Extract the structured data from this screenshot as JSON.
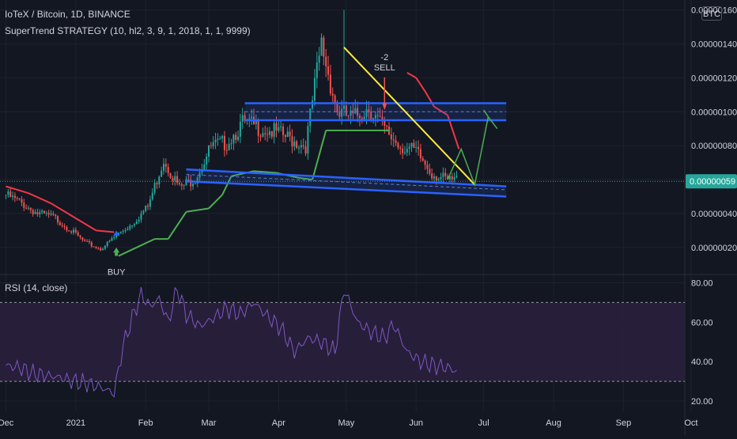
{
  "header": {
    "symbol_title": "IoTeX / Bitcoin, 1D, BINANCE",
    "strategy_title": "SuperTrend STRATEGY (10, hl2, 3, 9, 1, 2018, 1, 1, 9999)",
    "currency": "BTC"
  },
  "rsi_panel": {
    "title": "RSI (14, close)"
  },
  "colors": {
    "background": "#131722",
    "grid": "#1e222d",
    "candle_up": "#26a69a",
    "candle_down": "#ef5350",
    "supertrend_up": "#4caf50",
    "supertrend_down": "#f23645",
    "channel": "#2962ff",
    "trendline": "#ffeb3b",
    "projection": "#4caf50",
    "rsi_line": "#7e57c2",
    "rsi_band": "#2a1f3d",
    "price_badge": "#26a69a"
  },
  "chart_data": [
    {
      "type": "candlestick",
      "x_axis": {
        "tick_labels": [
          "Dec",
          "2021",
          "Feb",
          "Mar",
          "Apr",
          "May",
          "Jun",
          "Jul",
          "Aug",
          "Sep",
          "Oct"
        ]
      },
      "y_axis": {
        "scale": "linear",
        "ylim": [
          5e-08,
          1.64e-06
        ],
        "tick_values": [
          2e-07,
          4e-07,
          6e-07,
          8e-07,
          1e-06,
          1.2e-06,
          1.4e-06,
          1.6e-06
        ],
        "tick_labels": [
          "0.00000020",
          "0.00000040",
          "0.00000060",
          "0.00000080",
          "0.00000100",
          "0.00000120",
          "0.00000140",
          "0.00000160"
        ],
        "grid": true
      },
      "last_price": {
        "value": 5.9e-07,
        "label": "0.00000059"
      },
      "close_series": {
        "day": [
          0,
          7,
          14,
          21,
          28,
          35,
          42,
          49,
          56,
          63,
          70,
          77,
          84,
          91,
          98,
          105,
          112,
          119,
          126,
          133,
          140,
          147,
          154,
          161,
          168,
          175,
          182,
          189,
          196,
          200
        ],
        "value": [
          5.1e-07,
          4.6e-07,
          4e-07,
          3.8e-07,
          3.1e-07,
          2.3e-07,
          1.9e-07,
          2.7e-07,
          3.4e-07,
          4.4e-07,
          7.2e-07,
          5.5e-07,
          6.1e-07,
          7.9e-07,
          8.2e-07,
          9.3e-07,
          9.1e-07,
          8.8e-07,
          8.4e-07,
          8e-07,
          1.4e-06,
          1e-06,
          9.6e-07,
          1.03e-06,
          8.9e-07,
          8e-07,
          7.6e-07,
          6.4e-07,
          5.9e-07,
          6e-07
        ]
      },
      "supertrend": {
        "day": [
          0,
          10,
          20,
          30,
          40,
          48,
          50,
          58,
          66,
          72,
          80,
          90,
          96,
          100,
          110,
          120,
          130,
          136,
          142,
          150,
          160,
          170,
          178,
          182,
          186,
          190,
          196,
          201
        ],
        "value": [
          5.6e-07,
          5.2e-07,
          4.6e-07,
          3.8e-07,
          3e-07,
          2.9e-07,
          1.5e-07,
          2e-07,
          2.5e-07,
          2.5e-07,
          4.1e-07,
          4.3e-07,
          5.1e-07,
          6.2e-07,
          6.5e-07,
          6.4e-07,
          6.1e-07,
          6e-07,
          8.9e-07,
          8.9e-07,
          8.9e-07,
          8.9e-07,
          1.23e-06,
          1.2e-06,
          1.12e-06,
          1.03e-06,
          9.8e-07,
          7.8e-07
        ],
        "direction": [
          "down",
          "down",
          "down",
          "down",
          "down",
          "down",
          "up",
          "up",
          "up",
          "up",
          "up",
          "up",
          "up",
          "up",
          "up",
          "up",
          "up",
          "up",
          "up",
          "up",
          "up",
          "up",
          "down",
          "down",
          "down",
          "down",
          "down",
          "down"
        ]
      },
      "signals": [
        {
          "label": "BUY",
          "day": 49,
          "value": 1.4e-07
        },
        {
          "label": "-2\nSELL",
          "day": 168,
          "value": 1.24e-06
        }
      ],
      "annotations": {
        "upper_channel": {
          "top": 1.05e-06,
          "mid": 1e-06,
          "bottom": 9.5e-07,
          "day_start": 106,
          "day_end": 222
        },
        "lower_channel": {
          "start_top": 6.6e-07,
          "start_mid": 6.3e-07,
          "start_bottom": 5.9e-07,
          "end_top": 5.6e-07,
          "end_mid": 5.4e-07,
          "end_bottom": 5e-07,
          "day_start": 80,
          "day_end": 222
        },
        "trendline": {
          "day": [
            150,
            208
          ],
          "value": [
            1.38e-06,
            5.7e-07
          ]
        },
        "projection": {
          "day": [
            196,
            202,
            208,
            214,
            212,
            214,
            218
          ],
          "value": [
            6e-07,
            7.8e-07,
            5.7e-07,
            9.7e-07,
            1.01e-06,
            1.01e-06,
            9e-07
          ]
        }
      }
    },
    {
      "type": "line",
      "name": "RSI (14, close)",
      "y_axis": {
        "ylim": [
          18,
          83
        ],
        "tick_values": [
          20,
          40,
          60,
          80
        ],
        "tick_labels": [
          "20.00",
          "40.00",
          "60.00",
          "80.00"
        ]
      },
      "bands": {
        "upper": 70,
        "lower": 30
      },
      "x": [
        0,
        6,
        12,
        18,
        24,
        30,
        36,
        42,
        48,
        52,
        56,
        60,
        64,
        68,
        72,
        76,
        80,
        86,
        92,
        98,
        104,
        110,
        116,
        122,
        128,
        134,
        140,
        146,
        150,
        156,
        162,
        168,
        172,
        178,
        184,
        190,
        196,
        200
      ],
      "values": [
        38,
        37,
        34,
        33,
        32,
        30,
        29,
        27,
        24,
        48,
        62,
        74,
        68,
        72,
        60,
        77,
        64,
        58,
        62,
        67,
        64,
        70,
        63,
        57,
        45,
        52,
        50,
        45,
        77,
        60,
        55,
        52,
        59,
        45,
        40,
        38,
        37,
        35
      ]
    }
  ]
}
